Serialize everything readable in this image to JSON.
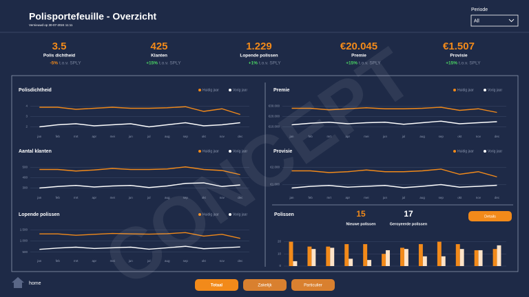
{
  "header": {
    "title": "Polisportefeuille - Overzicht",
    "subtitle": "Vernieuwd op 30-07-2024 11:11",
    "filter_label": "Periode",
    "filter_value": "All"
  },
  "kpis": [
    {
      "value": "3.5",
      "label": "Polis dichtheid",
      "change": "-5%",
      "suffix": "t.o.v. SPLY"
    },
    {
      "value": "425",
      "label": "Klanten",
      "change": "+15%",
      "suffix": "t.o.v. SPLY"
    },
    {
      "value": "1.229",
      "label": "Lopende polissen",
      "change": "+1%",
      "suffix": "t.o.v. SPLY"
    },
    {
      "value": "€20.045",
      "label": "Premie",
      "change": "+15%",
      "suffix": "t.o.v. SPLY"
    },
    {
      "value": "€1.507",
      "label": "Provisie",
      "change": "+15%",
      "suffix": "t.o.v. SPLY"
    }
  ],
  "watermark": "CONCEPT",
  "polissen": {
    "title": "Polissen",
    "new_value": "15",
    "new_label": "Nieuwe polissen",
    "cancelled_value": "17",
    "cancelled_label": "Geroyeerde polissen",
    "button": "Details"
  },
  "nav": {
    "home": "home",
    "buttons": [
      "Totaal",
      "Zakelijk",
      "Particulier"
    ]
  },
  "chart_data": [
    {
      "type": "line",
      "title": "Polisdichtheid",
      "categories": [
        "jan",
        "feb",
        "mrt",
        "apr",
        "mei",
        "jun",
        "jul",
        "aug",
        "sep",
        "okt",
        "nov",
        "dec"
      ],
      "series": [
        {
          "name": "Huidig jaar",
          "color": "#f28a1a",
          "values": [
            3.9,
            3.9,
            3.7,
            3.8,
            3.9,
            3.8,
            3.8,
            3.85,
            3.95,
            3.5,
            3.75,
            3.2
          ]
        },
        {
          "name": "Vorig jaar",
          "color": "#ffffff",
          "values": [
            2.0,
            2.2,
            2.3,
            2.1,
            2.2,
            2.3,
            2.0,
            2.2,
            2.4,
            2.1,
            2.2,
            2.4
          ]
        }
      ],
      "ylim": [
        1.5,
        4.5
      ],
      "yticks": [
        2,
        3,
        4
      ],
      "grid": true
    },
    {
      "type": "line",
      "title": "Aantal klanten",
      "categories": [
        "jan",
        "feb",
        "mrt",
        "apr",
        "mei",
        "jun",
        "jul",
        "aug",
        "sep",
        "okt",
        "nov",
        "dec"
      ],
      "series": [
        {
          "name": "Huidig jaar",
          "color": "#f28a1a",
          "values": [
            480,
            480,
            465,
            475,
            490,
            480,
            480,
            485,
            505,
            480,
            470,
            430
          ]
        },
        {
          "name": "Vorig jaar",
          "color": "#ffffff",
          "values": [
            300,
            315,
            325,
            310,
            320,
            325,
            305,
            320,
            345,
            350,
            315,
            330
          ]
        }
      ],
      "ylim": [
        250,
        550
      ],
      "yticks": [
        300,
        400,
        500
      ],
      "grid": true
    },
    {
      "type": "line",
      "title": "Lopende polissen",
      "categories": [
        "jan",
        "feb",
        "mrt",
        "apr",
        "mei",
        "jun",
        "jul",
        "aug",
        "sep",
        "okt",
        "nov",
        "dec"
      ],
      "series": [
        {
          "name": "Huidig jaar",
          "color": "#f28a1a",
          "values": [
            1320,
            1320,
            1260,
            1300,
            1340,
            1320,
            1310,
            1330,
            1380,
            1220,
            1300,
            1120
          ]
        },
        {
          "name": "Vorig jaar",
          "color": "#ffffff",
          "values": [
            620,
            680,
            720,
            660,
            690,
            720,
            630,
            690,
            760,
            650,
            690,
            730
          ]
        }
      ],
      "ylim": [
        300,
        1700
      ],
      "yticks": [
        {
          "value": 500,
          "label": "500"
        },
        {
          "value": 1000,
          "label": "1.000"
        },
        {
          "value": 1500,
          "label": "1.500"
        }
      ],
      "grid": true
    },
    {
      "type": "line",
      "title": "Premie",
      "categories": [
        "jan",
        "feb",
        "mrt",
        "apr",
        "mei",
        "jun",
        "jul",
        "aug",
        "sep",
        "okt",
        "nov",
        "dec"
      ],
      "series": [
        {
          "name": "Huidig jaar",
          "color": "#f28a1a",
          "values": [
            28000,
            28000,
            26500,
            27500,
            28500,
            27500,
            27500,
            28000,
            29000,
            26000,
            27500,
            24000
          ]
        },
        {
          "name": "Vorig jaar",
          "color": "#ffffff",
          "values": [
            12000,
            13500,
            14500,
            13000,
            14000,
            14500,
            12500,
            14000,
            15500,
            13000,
            14000,
            15000
          ]
        }
      ],
      "ylim": [
        5000,
        35000
      ],
      "yticks": [
        {
          "value": 10000,
          "label": "€10.000"
        },
        {
          "value": 20000,
          "label": "€20.000"
        },
        {
          "value": 30000,
          "label": "€30.000"
        }
      ],
      "grid": true
    },
    {
      "type": "line",
      "title": "Provisie",
      "categories": [
        "jan",
        "feb",
        "mrt",
        "apr",
        "mei",
        "jun",
        "jul",
        "aug",
        "sep",
        "okt",
        "nov",
        "dec"
      ],
      "series": [
        {
          "name": "Huidig jaar",
          "color": "#f28a1a",
          "values": [
            1800,
            1800,
            1700,
            1750,
            1850,
            1750,
            1750,
            1800,
            1900,
            1600,
            1750,
            1450
          ]
        },
        {
          "name": "Vorig jaar",
          "color": "#ffffff",
          "values": [
            800,
            900,
            950,
            850,
            900,
            950,
            820,
            900,
            1000,
            850,
            900,
            960
          ]
        }
      ],
      "ylim": [
        500,
        2300
      ],
      "yticks": [
        {
          "value": 1000,
          "label": "€1.000"
        },
        {
          "value": 2000,
          "label": "€2.000"
        }
      ],
      "grid": true
    },
    {
      "type": "bar",
      "series": [
        {
          "color": "#f28a1a",
          "values": [
            20,
            16,
            16,
            18,
            18,
            10,
            15,
            18,
            20,
            18,
            13,
            14
          ]
        },
        {
          "color": "#fde3c8",
          "values": [
            4,
            14,
            15,
            6,
            5,
            13,
            14,
            8,
            8,
            14,
            13,
            17
          ]
        }
      ],
      "ylim": [
        0,
        22
      ],
      "yticks": [
        0,
        10,
        20
      ],
      "grid": true
    }
  ]
}
